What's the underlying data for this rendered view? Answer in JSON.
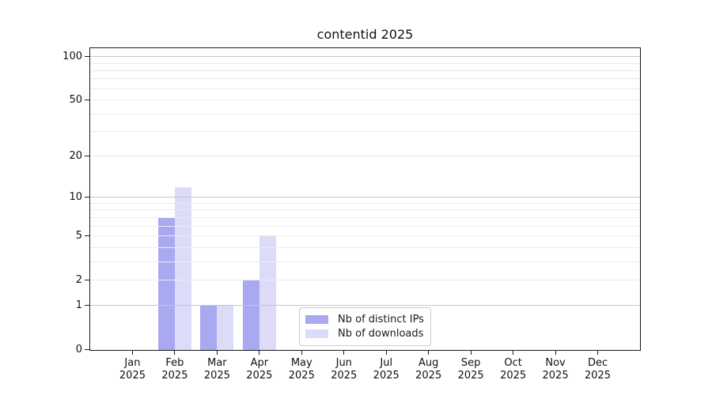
{
  "title": "contentid 2025",
  "chart_data": {
    "type": "bar",
    "title": "contentid 2025",
    "categories": [
      "Jan",
      "Feb",
      "Mar",
      "Apr",
      "May",
      "Jun",
      "Jul",
      "Aug",
      "Sep",
      "Oct",
      "Nov",
      "Dec"
    ],
    "year": "2025",
    "series": [
      {
        "name": "Nb of distinct IPs",
        "color": "#a9a9f2",
        "values": [
          0,
          7,
          1,
          2,
          0,
          0,
          0,
          0,
          0,
          0,
          0,
          0
        ]
      },
      {
        "name": "Nb of downloads",
        "color": "#dcdcf9",
        "values": [
          0,
          12,
          1,
          5,
          0,
          0,
          0,
          0,
          0,
          0,
          0,
          0
        ]
      }
    ],
    "y_scale": "log1p",
    "y_max": 115,
    "y_tick_values": [
      0,
      1,
      2,
      5,
      10,
      20,
      50,
      100
    ],
    "y_tick_labels": [
      "0",
      "1",
      "2",
      "5",
      "10",
      "20",
      "50",
      "100"
    ],
    "major_gridlines": [
      1,
      10,
      100
    ],
    "minor_gridlines": [
      2,
      3,
      4,
      5,
      6,
      7,
      8,
      9,
      20,
      30,
      40,
      50,
      60,
      70,
      80,
      90
    ],
    "grid": true,
    "legend_position": "bottom-center",
    "xlabel": "",
    "ylabel": ""
  },
  "colors": {
    "bar_distinct_ips": "#a9a9f2",
    "bar_downloads": "#dcdcf9",
    "grid_major": "#c6c6c6",
    "grid_minor": "#ebebeb",
    "axis": "#1a1a1a",
    "legend_border": "#cccccc",
    "background": "#ffffff"
  }
}
